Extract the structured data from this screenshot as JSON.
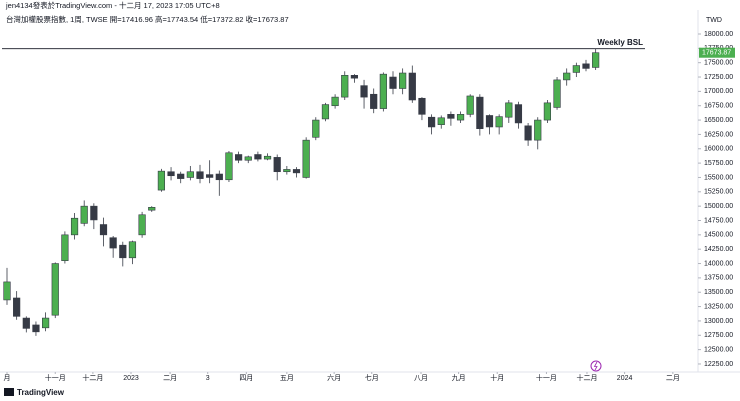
{
  "chart_data": {
    "type": "candlestick",
    "header": "jen4134發表於TradingView.com - 十二月 17, 2023 17:05 UTC+8",
    "title": "台灣加權股票指數, 1周, TWSE  開=17416.96  高=17743.54  低=17372.82  收=17673.87",
    "currency": "TWD",
    "annotation": "Weekly BSL",
    "bsl_level": 17743.54,
    "brand": "TradingView",
    "up_color": "#4caf50",
    "down_color": "#363a45",
    "open": [
      13366,
      13400,
      13050,
      12930,
      12880,
      13100,
      14050,
      14500,
      14700,
      15000,
      14680,
      14450,
      14320,
      14100,
      14500,
      14930,
      15280,
      15600,
      15560,
      15500,
      15600,
      15550,
      15560,
      15460,
      15900,
      15800,
      15900,
      15820,
      15850,
      15600,
      15640,
      15500,
      16200,
      16520,
      16750,
      16900,
      17280,
      17100,
      16950,
      16700,
      17250,
      17050,
      17320,
      16880,
      16550,
      16420,
      16600,
      16500,
      16600,
      16900,
      16580,
      16380,
      16550,
      16770,
      16400,
      16150,
      16500,
      16720,
      17200,
      17330,
      17480,
      17416.96
    ],
    "high": [
      13924,
      13520,
      13080,
      12990,
      13150,
      14020,
      14560,
      14880,
      15100,
      15050,
      14800,
      14480,
      14380,
      14400,
      14900,
      15000,
      15650,
      15680,
      15600,
      15700,
      15720,
      15800,
      15620,
      15960,
      15950,
      15880,
      15950,
      15920,
      15900,
      15700,
      15680,
      16200,
      16550,
      16800,
      16950,
      17350,
      17300,
      17200,
      17050,
      17330,
      17350,
      17400,
      17450,
      16900,
      16600,
      16580,
      16650,
      16650,
      16950,
      16950,
      16600,
      16600,
      16850,
      16820,
      16450,
      16550,
      16850,
      17250,
      17400,
      17500,
      17550,
      17743.54
    ],
    "low": [
      13279,
      13020,
      12800,
      12740,
      12820,
      13050,
      14000,
      14420,
      14650,
      14600,
      14300,
      14100,
      13950,
      13990,
      14450,
      14900,
      15250,
      15450,
      15400,
      15450,
      15400,
      15400,
      15180,
      15420,
      15750,
      15750,
      15780,
      15800,
      15450,
      15550,
      15500,
      15480,
      16150,
      16480,
      16700,
      16850,
      17150,
      16700,
      16620,
      16650,
      16950,
      16950,
      16800,
      16500,
      16250,
      16350,
      16400,
      16450,
      16550,
      16230,
      16250,
      16250,
      16450,
      16350,
      16050,
      15990,
      16450,
      16680,
      17100,
      17250,
      17350,
      17372.82
    ],
    "close": [
      13680,
      13080,
      12870,
      12810,
      13050,
      14000,
      14500,
      14790,
      15000,
      14760,
      14500,
      14270,
      14100,
      14380,
      14850,
      14980,
      15610,
      15530,
      15480,
      15600,
      15480,
      15500,
      15460,
      15930,
      15800,
      15860,
      15820,
      15870,
      15600,
      15640,
      15580,
      16150,
      16500,
      16770,
      16900,
      17280,
      17230,
      16900,
      16700,
      17300,
      17050,
      17320,
      16850,
      16600,
      16380,
      16540,
      16530,
      16600,
      16920,
      16350,
      16380,
      16560,
      16800,
      16450,
      16150,
      16500,
      16800,
      17200,
      17320,
      17450,
      17400,
      17673.87
    ],
    "xticks": [
      {
        "value": 0,
        "label": "月"
      },
      {
        "value": 5,
        "label": "十一月"
      },
      {
        "value": 8.9,
        "label": "十二月"
      },
      {
        "value": 12.85,
        "label": "2023"
      },
      {
        "value": 16.9,
        "label": "二月"
      },
      {
        "value": 20.8,
        "label": "3"
      },
      {
        "value": 24.8,
        "label": "四月"
      },
      {
        "value": 29,
        "label": "五月"
      },
      {
        "value": 33.9,
        "label": "六月"
      },
      {
        "value": 37.8,
        "label": "七月"
      },
      {
        "value": 42.9,
        "label": "八月"
      },
      {
        "value": 46.8,
        "label": "九月"
      },
      {
        "value": 50.8,
        "label": "十月"
      },
      {
        "value": 55.9,
        "label": "十一月"
      },
      {
        "value": 60.1,
        "label": "十二月"
      },
      {
        "value": 64,
        "label": "2024"
      },
      {
        "value": 69,
        "label": "二月"
      }
    ],
    "ylim": [
      12145,
      18418
    ],
    "yticks": [
      {
        "value": 12250,
        "label": "12250.00"
      },
      {
        "value": 12500,
        "label": "12500.00"
      },
      {
        "value": 12750,
        "label": "12750.00"
      },
      {
        "value": 13000,
        "label": "13000.00"
      },
      {
        "value": 13250,
        "label": "13250.00"
      },
      {
        "value": 13500,
        "label": "13500.00"
      },
      {
        "value": 13750,
        "label": "13750.00"
      },
      {
        "value": 14000,
        "label": "14000.00"
      },
      {
        "value": 14250,
        "label": "14250.00"
      },
      {
        "value": 14500,
        "label": "14500.00"
      },
      {
        "value": 14750,
        "label": "14750.00"
      },
      {
        "value": 15000,
        "label": "15000.00"
      },
      {
        "value": 15250,
        "label": "15250.00"
      },
      {
        "value": 15500,
        "label": "15500.00"
      },
      {
        "value": 15750,
        "label": "15750.00"
      },
      {
        "value": 16000,
        "label": "16000.00"
      },
      {
        "value": 16250,
        "label": "16250.00"
      },
      {
        "value": 16500,
        "label": "16500.00"
      },
      {
        "value": 16750,
        "label": "16750.00"
      },
      {
        "value": 17000,
        "label": "17000.00"
      },
      {
        "value": 17250,
        "label": "17250.00"
      },
      {
        "value": 17500,
        "label": "17500.00"
      },
      {
        "value": 17750,
        "label": "17750.00"
      },
      {
        "value": 18000,
        "label": "18000.00"
      }
    ]
  }
}
